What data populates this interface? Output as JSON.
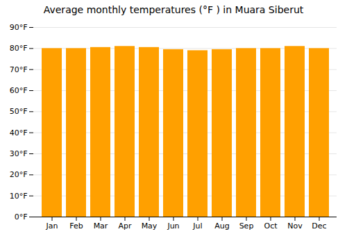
{
  "chart_data": {
    "type": "bar",
    "title": "Average monthly temperatures (°F ) in Muara Siberut",
    "categories": [
      "Jan",
      "Feb",
      "Mar",
      "Apr",
      "May",
      "Jun",
      "Jul",
      "Aug",
      "Sep",
      "Oct",
      "Nov",
      "Dec"
    ],
    "values": [
      80,
      80,
      80.5,
      81,
      80.5,
      79.5,
      79,
      79.5,
      80,
      80,
      81,
      80
    ],
    "color": "#FFA000",
    "ylim": [
      0,
      90
    ],
    "yticks": [
      {
        "value": 0,
        "label": "0°F"
      },
      {
        "value": 10,
        "label": "10°F"
      },
      {
        "value": 20,
        "label": "20°F"
      },
      {
        "value": 30,
        "label": "30°F"
      },
      {
        "value": 40,
        "label": "40°F"
      },
      {
        "value": 50,
        "label": "50°F"
      },
      {
        "value": 60,
        "label": "60°F"
      },
      {
        "value": 70,
        "label": "70°F"
      },
      {
        "value": 80,
        "label": "80°F"
      },
      {
        "value": 90,
        "label": "90°F"
      }
    ],
    "grid": true
  }
}
